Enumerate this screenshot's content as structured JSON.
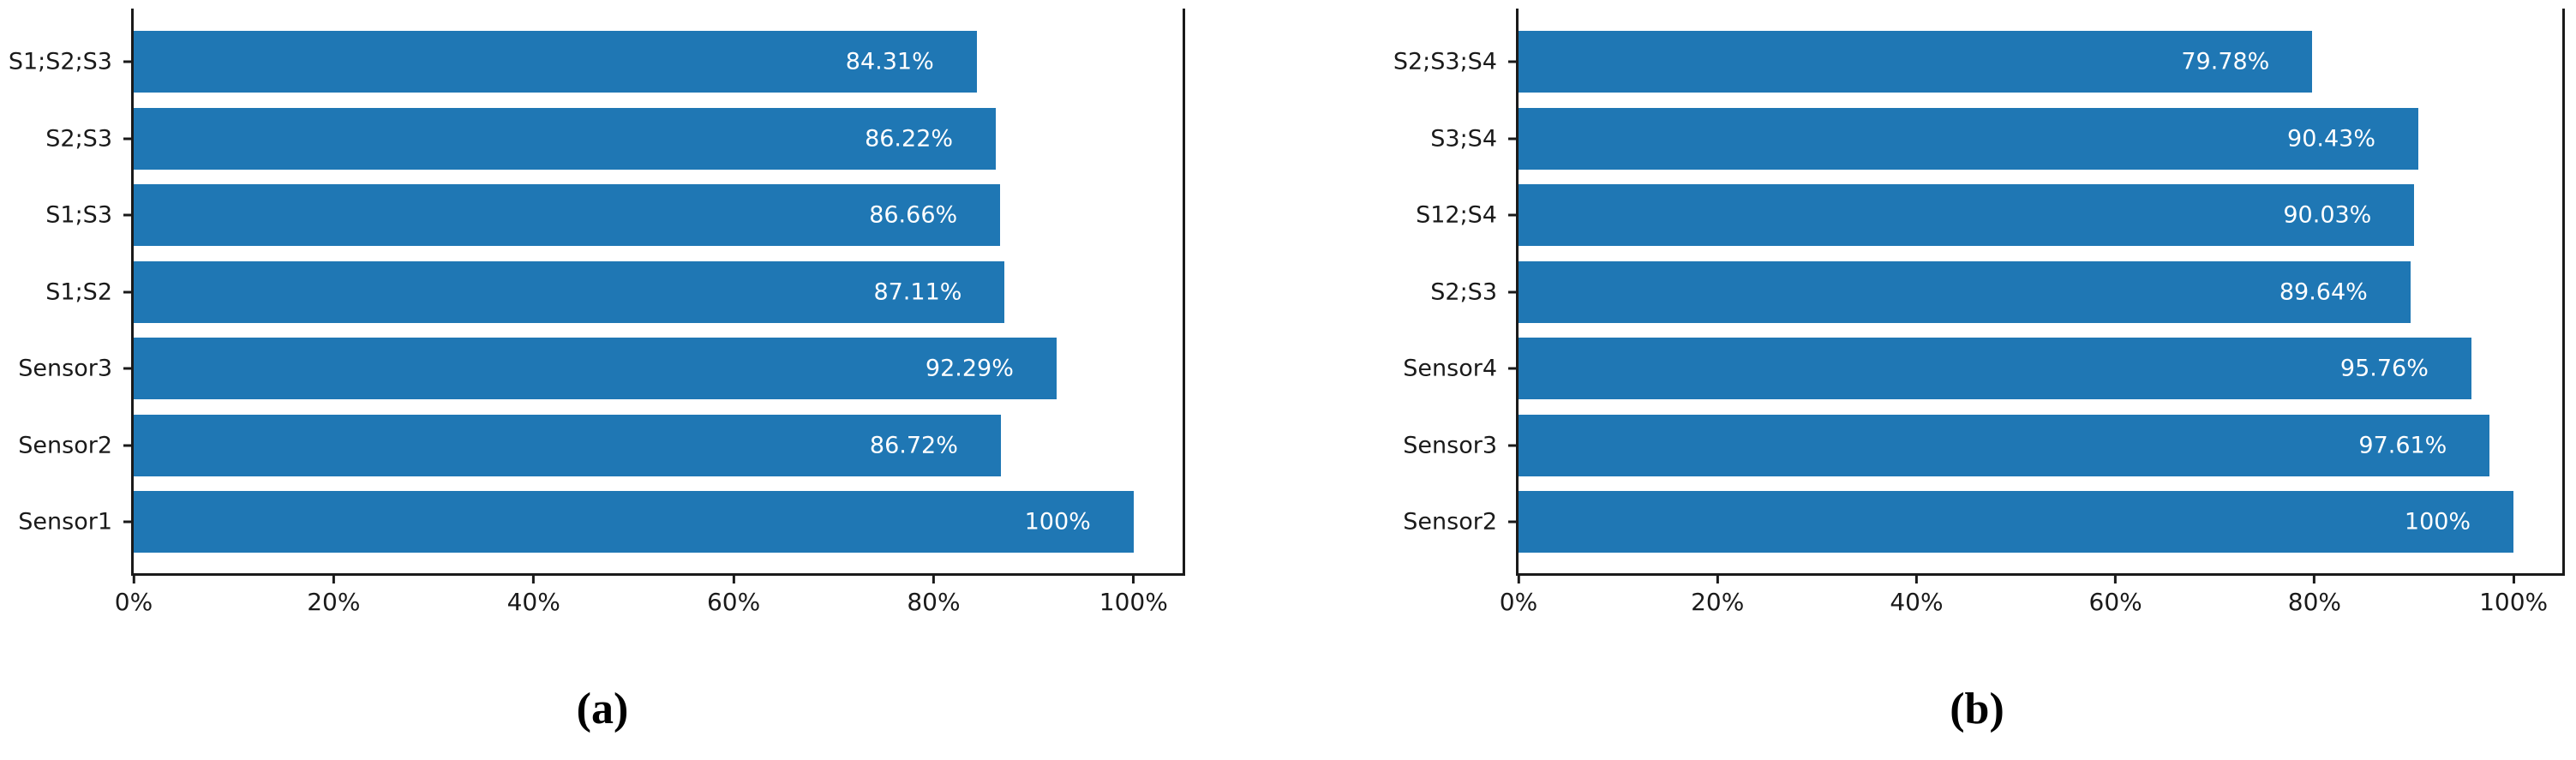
{
  "figure": {
    "background_color": "#ffffff",
    "bar_color": "#1f77b4",
    "axis_color": "#1a1a1a",
    "bar_value_text_color": "#ffffff",
    "caption_a": "(a)",
    "caption_b": "(b)"
  },
  "chart_data": [
    {
      "id": "a",
      "type": "bar",
      "orientation": "horizontal",
      "title": "",
      "xlabel": "",
      "ylabel": "",
      "grid": false,
      "legend": null,
      "categories_top_to_bottom": [
        "S1;S2;S3",
        "S2;S3",
        "S1;S3",
        "S1;S2",
        "Sensor3",
        "Sensor2",
        "Sensor1"
      ],
      "values_percent": [
        84.31,
        86.22,
        86.66,
        87.11,
        92.29,
        86.72,
        100
      ],
      "bar_labels": [
        "84.31%",
        "86.22%",
        "86.66%",
        "87.11%",
        "92.29%",
        "86.72%",
        "100%"
      ],
      "x_tick_values": [
        0,
        20,
        40,
        60,
        80,
        100
      ],
      "x_tick_labels": [
        "0%",
        "20%",
        "40%",
        "60%",
        "80%",
        "100%"
      ],
      "xlim_percent": [
        0,
        104.9
      ]
    },
    {
      "id": "b",
      "type": "bar",
      "orientation": "horizontal",
      "title": "",
      "xlabel": "",
      "ylabel": "",
      "grid": false,
      "legend": null,
      "categories_top_to_bottom": [
        "S2;S3;S4",
        "S3;S4",
        "S12;S4",
        "S2;S3",
        "Sensor4",
        "Sensor3",
        "Sensor2"
      ],
      "values_percent": [
        79.78,
        90.43,
        90.03,
        89.64,
        95.76,
        97.61,
        100
      ],
      "bar_labels": [
        "79.78%",
        "90.43%",
        "90.03%",
        "89.64%",
        "95.76%",
        "97.61%",
        "100%"
      ],
      "x_tick_values": [
        0,
        20,
        40,
        60,
        80,
        100
      ],
      "x_tick_labels": [
        "0%",
        "20%",
        "40%",
        "60%",
        "80%",
        "100%"
      ],
      "xlim_percent": [
        0,
        104.9
      ]
    }
  ]
}
